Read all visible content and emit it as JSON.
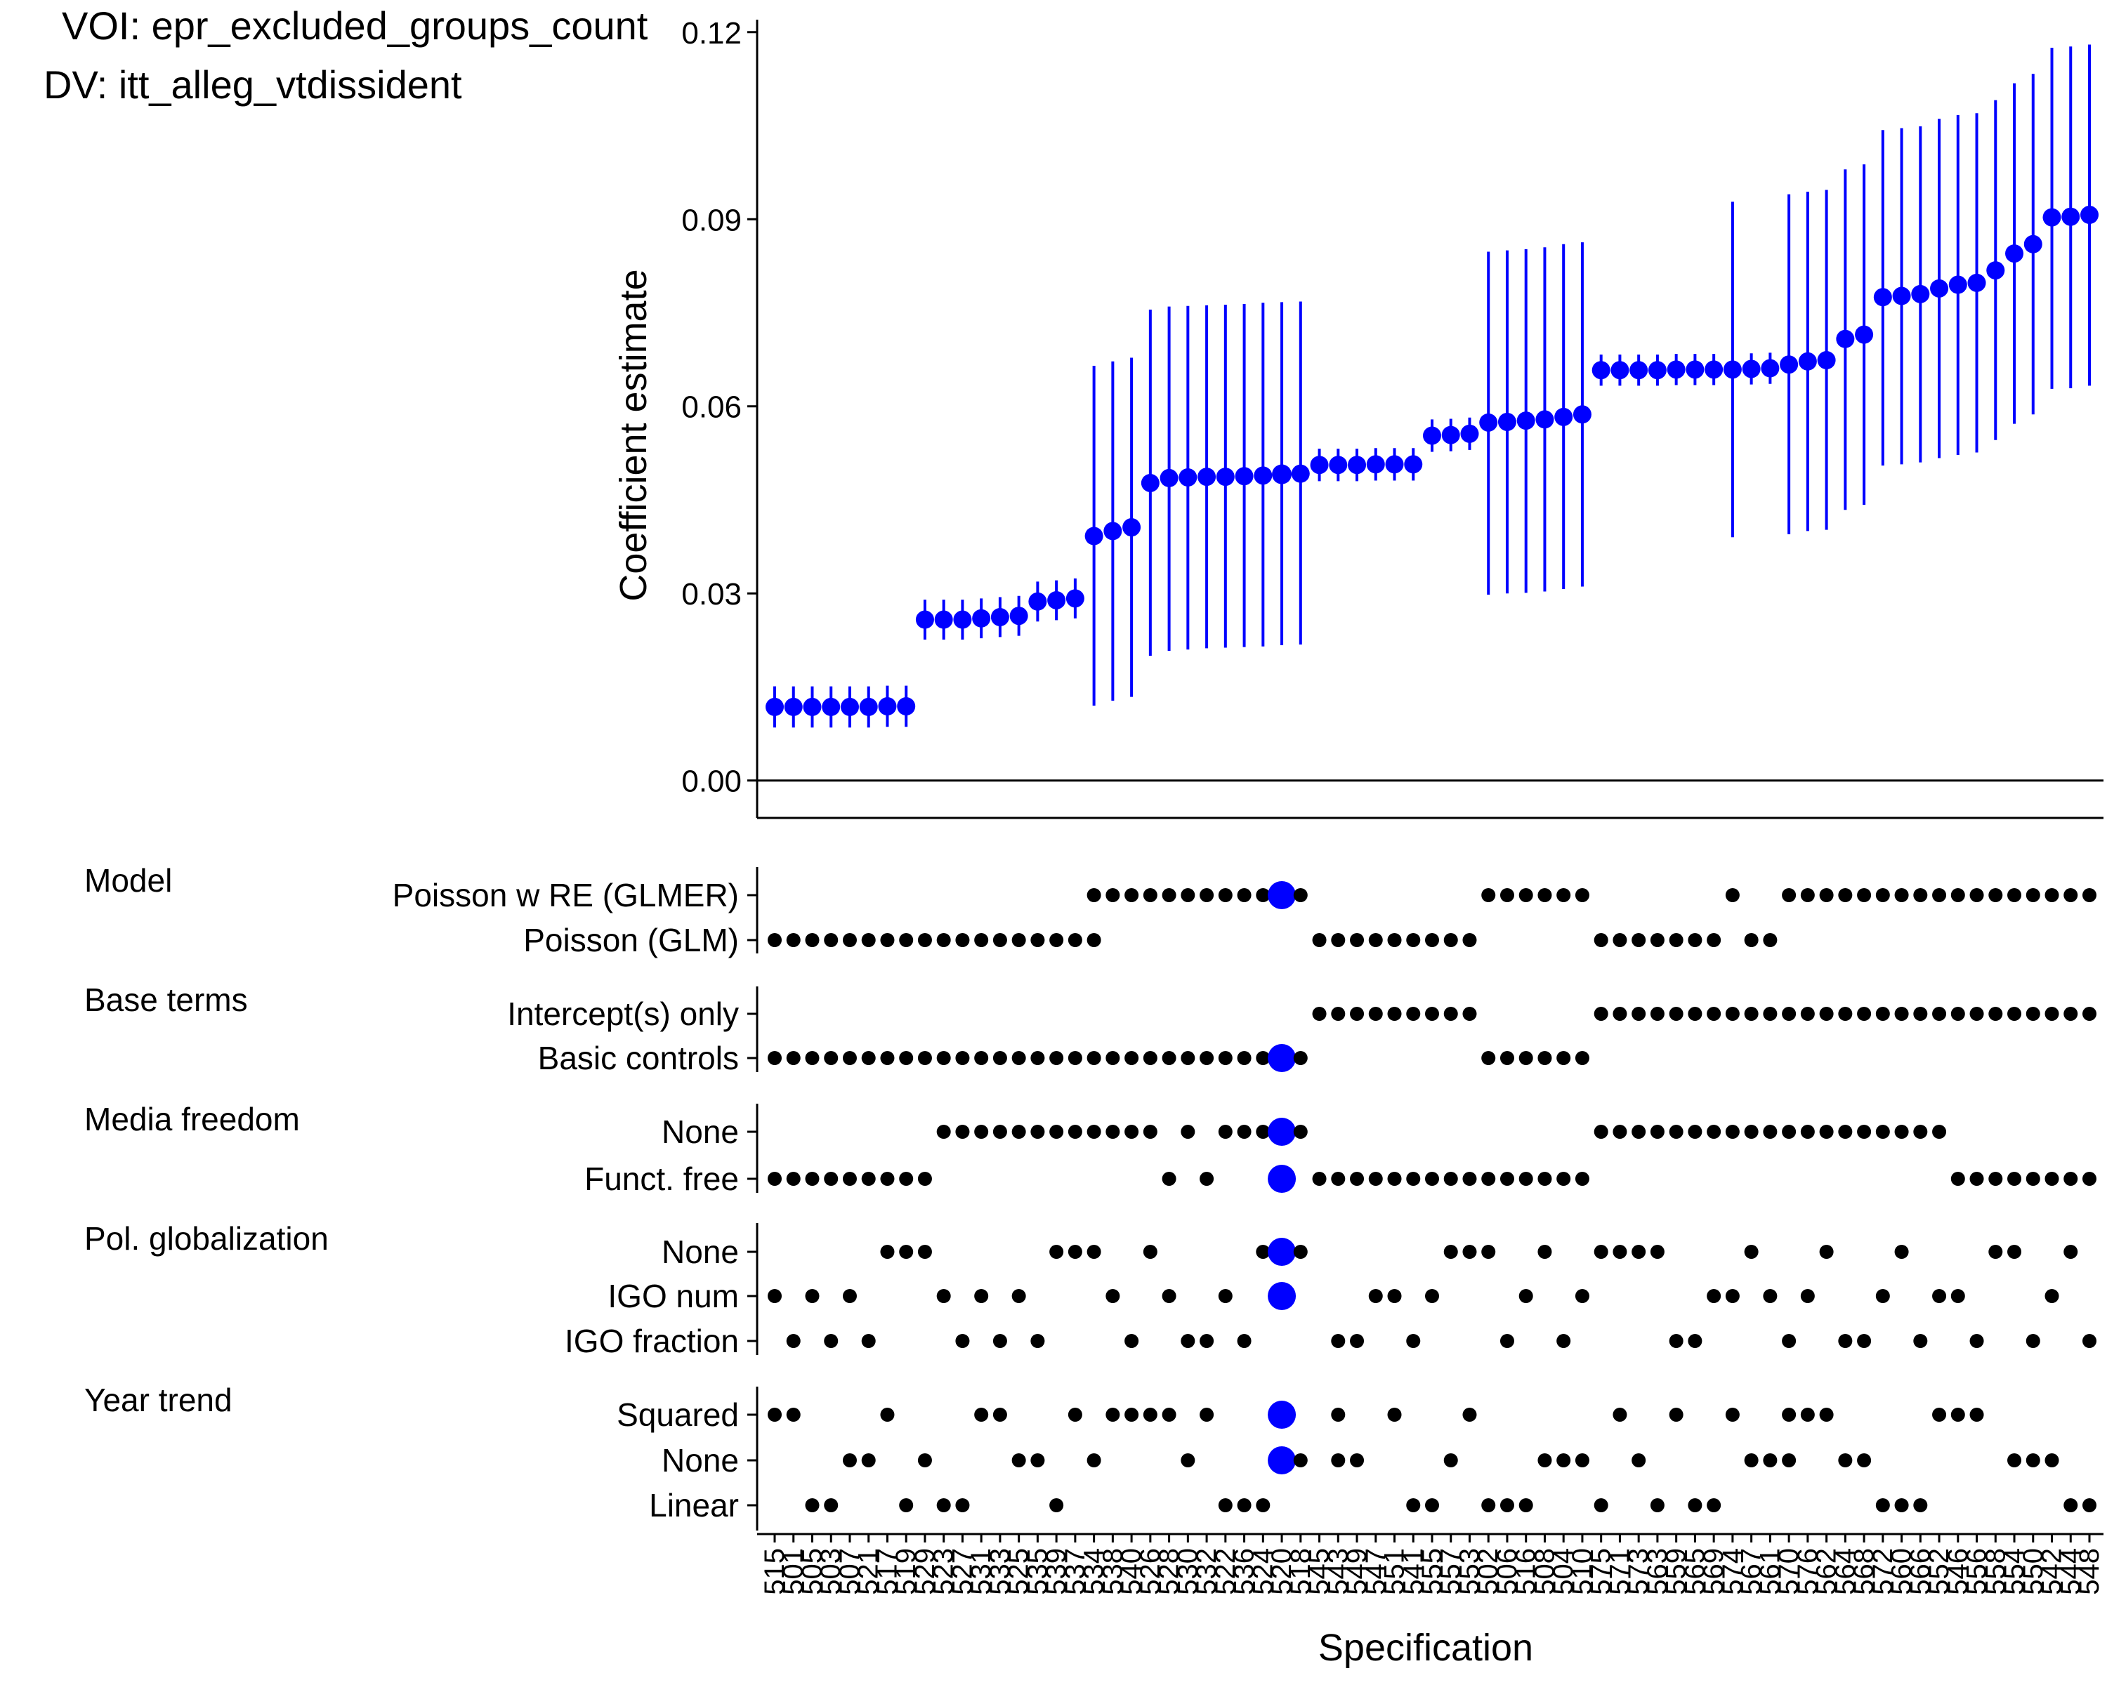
{
  "header": {
    "voi_label": "VOI: epr_excluded_groups_count",
    "dv_label": "DV: itt_alleg_vtdissident"
  },
  "colors": {
    "highlight": "#0000ff",
    "point": "#000000"
  },
  "chart_data": {
    "type": "scatter",
    "subtype": "specification-curve",
    "ylabel": "Coefficient estimate",
    "xlabel": "Specification",
    "ylim": [
      -0.006,
      0.122
    ],
    "yticks": [
      0.0,
      0.03,
      0.06,
      0.09,
      0.12
    ],
    "ytick_labels": [
      "0.00",
      "0.03",
      "0.06",
      "0.09",
      "0.12"
    ],
    "reference_line": 0.0,
    "highlighted_spec": 28,
    "specs": [
      {
        "id": "515",
        "est": 0.0118,
        "lo": 0.0085,
        "hi": 0.0151
      },
      {
        "id": "501",
        "est": 0.0118,
        "lo": 0.0085,
        "hi": 0.0151
      },
      {
        "id": "505",
        "est": 0.0118,
        "lo": 0.0085,
        "hi": 0.0151
      },
      {
        "id": "503",
        "est": 0.0118,
        "lo": 0.0085,
        "hi": 0.0151
      },
      {
        "id": "507",
        "est": 0.0118,
        "lo": 0.0085,
        "hi": 0.0151
      },
      {
        "id": "521",
        "est": 0.0118,
        "lo": 0.0085,
        "hi": 0.0151
      },
      {
        "id": "517",
        "est": 0.0119,
        "lo": 0.0086,
        "hi": 0.0152
      },
      {
        "id": "519",
        "est": 0.0119,
        "lo": 0.0086,
        "hi": 0.0152
      },
      {
        "id": "529",
        "est": 0.0258,
        "lo": 0.0226,
        "hi": 0.029
      },
      {
        "id": "523",
        "est": 0.0258,
        "lo": 0.0226,
        "hi": 0.029
      },
      {
        "id": "527",
        "est": 0.0258,
        "lo": 0.0226,
        "hi": 0.029
      },
      {
        "id": "531",
        "est": 0.026,
        "lo": 0.0228,
        "hi": 0.0292
      },
      {
        "id": "533",
        "est": 0.0262,
        "lo": 0.023,
        "hi": 0.0294
      },
      {
        "id": "525",
        "est": 0.0264,
        "lo": 0.0232,
        "hi": 0.0296
      },
      {
        "id": "535",
        "est": 0.0287,
        "lo": 0.0255,
        "hi": 0.0319
      },
      {
        "id": "539",
        "est": 0.0289,
        "lo": 0.0257,
        "hi": 0.0321
      },
      {
        "id": "537",
        "est": 0.0292,
        "lo": 0.026,
        "hi": 0.0324
      },
      {
        "id": "534",
        "est": 0.0392,
        "lo": 0.012,
        "hi": 0.0665
      },
      {
        "id": "538",
        "est": 0.04,
        "lo": 0.0128,
        "hi": 0.0672
      },
      {
        "id": "540",
        "est": 0.0406,
        "lo": 0.0134,
        "hi": 0.0678
      },
      {
        "id": "526",
        "est": 0.0477,
        "lo": 0.02,
        "hi": 0.0755
      },
      {
        "id": "528",
        "est": 0.0485,
        "lo": 0.0208,
        "hi": 0.076
      },
      {
        "id": "530",
        "est": 0.0486,
        "lo": 0.021,
        "hi": 0.0761
      },
      {
        "id": "532",
        "est": 0.0487,
        "lo": 0.0212,
        "hi": 0.0762
      },
      {
        "id": "522",
        "est": 0.0487,
        "lo": 0.0213,
        "hi": 0.0763
      },
      {
        "id": "536",
        "est": 0.0488,
        "lo": 0.0214,
        "hi": 0.0764
      },
      {
        "id": "524",
        "est": 0.0489,
        "lo": 0.0215,
        "hi": 0.0766
      },
      {
        "id": "520",
        "est": 0.0491,
        "lo": 0.0217,
        "hi": 0.0767
      },
      {
        "id": "518",
        "est": 0.0492,
        "lo": 0.0218,
        "hi": 0.0768
      },
      {
        "id": "545",
        "est": 0.0506,
        "lo": 0.048,
        "hi": 0.0532
      },
      {
        "id": "543",
        "est": 0.0506,
        "lo": 0.048,
        "hi": 0.0532
      },
      {
        "id": "549",
        "est": 0.0506,
        "lo": 0.048,
        "hi": 0.0532
      },
      {
        "id": "547",
        "est": 0.0507,
        "lo": 0.0481,
        "hi": 0.0533
      },
      {
        "id": "551",
        "est": 0.0507,
        "lo": 0.0481,
        "hi": 0.0533
      },
      {
        "id": "541",
        "est": 0.0507,
        "lo": 0.0481,
        "hi": 0.0533
      },
      {
        "id": "555",
        "est": 0.0553,
        "lo": 0.0527,
        "hi": 0.0579
      },
      {
        "id": "557",
        "est": 0.0554,
        "lo": 0.0528,
        "hi": 0.058
      },
      {
        "id": "553",
        "est": 0.0556,
        "lo": 0.053,
        "hi": 0.0582
      },
      {
        "id": "502",
        "est": 0.0574,
        "lo": 0.0298,
        "hi": 0.0848
      },
      {
        "id": "506",
        "est": 0.0575,
        "lo": 0.03,
        "hi": 0.085
      },
      {
        "id": "516",
        "est": 0.0577,
        "lo": 0.0301,
        "hi": 0.0852
      },
      {
        "id": "508",
        "est": 0.0579,
        "lo": 0.0303,
        "hi": 0.0855
      },
      {
        "id": "504",
        "est": 0.0583,
        "lo": 0.0307,
        "hi": 0.086
      },
      {
        "id": "510",
        "est": 0.0587,
        "lo": 0.0311,
        "hi": 0.0863
      },
      {
        "id": "575",
        "est": 0.0658,
        "lo": 0.0633,
        "hi": 0.0683
      },
      {
        "id": "571",
        "est": 0.0658,
        "lo": 0.0633,
        "hi": 0.0683
      },
      {
        "id": "573",
        "est": 0.0658,
        "lo": 0.0633,
        "hi": 0.0683
      },
      {
        "id": "563",
        "est": 0.0658,
        "lo": 0.0633,
        "hi": 0.0683
      },
      {
        "id": "559",
        "est": 0.0659,
        "lo": 0.0634,
        "hi": 0.0684
      },
      {
        "id": "565",
        "est": 0.0659,
        "lo": 0.0634,
        "hi": 0.0684
      },
      {
        "id": "569",
        "est": 0.0659,
        "lo": 0.0634,
        "hi": 0.0684
      },
      {
        "id": "574",
        "est": 0.0659,
        "lo": 0.039,
        "hi": 0.0928
      },
      {
        "id": "567",
        "est": 0.066,
        "lo": 0.0635,
        "hi": 0.0685
      },
      {
        "id": "561",
        "est": 0.0661,
        "lo": 0.0636,
        "hi": 0.0686
      },
      {
        "id": "570",
        "est": 0.0667,
        "lo": 0.0395,
        "hi": 0.094
      },
      {
        "id": "576",
        "est": 0.0672,
        "lo": 0.04,
        "hi": 0.0944
      },
      {
        "id": "562",
        "est": 0.0674,
        "lo": 0.0402,
        "hi": 0.0947
      },
      {
        "id": "564",
        "est": 0.0708,
        "lo": 0.0434,
        "hi": 0.098
      },
      {
        "id": "568",
        "est": 0.0715,
        "lo": 0.0442,
        "hi": 0.0988
      },
      {
        "id": "572",
        "est": 0.0775,
        "lo": 0.0505,
        "hi": 0.1043
      },
      {
        "id": "560",
        "est": 0.0777,
        "lo": 0.0507,
        "hi": 0.1046
      },
      {
        "id": "566",
        "est": 0.078,
        "lo": 0.051,
        "hi": 0.1049
      },
      {
        "id": "552",
        "est": 0.0789,
        "lo": 0.0517,
        "hi": 0.1061
      },
      {
        "id": "546",
        "est": 0.0795,
        "lo": 0.0522,
        "hi": 0.1067
      },
      {
        "id": "556",
        "est": 0.0798,
        "lo": 0.0526,
        "hi": 0.107
      },
      {
        "id": "558",
        "est": 0.0818,
        "lo": 0.0546,
        "hi": 0.1091
      },
      {
        "id": "554",
        "est": 0.0845,
        "lo": 0.0572,
        "hi": 0.1118
      },
      {
        "id": "550",
        "est": 0.086,
        "lo": 0.0587,
        "hi": 0.1133
      },
      {
        "id": "542",
        "est": 0.0903,
        "lo": 0.0628,
        "hi": 0.1175
      },
      {
        "id": "544",
        "est": 0.0904,
        "lo": 0.0629,
        "hi": 0.1177
      },
      {
        "id": "548",
        "est": 0.0907,
        "lo": 0.0633,
        "hi": 0.118
      }
    ],
    "panels": [
      {
        "title": "Model",
        "levels": [
          {
            "label": "Poisson w RE (GLMER)",
            "specs": [
              18,
              19,
              20,
              21,
              22,
              23,
              24,
              25,
              26,
              27,
              28,
              29,
              39,
              40,
              41,
              42,
              43,
              44,
              52,
              55,
              56,
              57,
              58,
              59,
              60,
              61,
              62,
              63,
              64,
              65,
              66,
              67,
              68,
              69,
              70,
              71
            ]
          },
          {
            "label": "Poisson (GLM)",
            "specs": [
              1,
              2,
              3,
              4,
              5,
              6,
              7,
              8,
              9,
              10,
              11,
              12,
              13,
              14,
              15,
              16,
              17,
              18,
              30,
              31,
              32,
              33,
              34,
              35,
              36,
              37,
              38,
              45,
              46,
              47,
              48,
              49,
              50,
              51,
              53,
              54
            ]
          }
        ]
      },
      {
        "title": "Base terms",
        "levels": [
          {
            "label": "Intercept(s) only",
            "specs": [
              30,
              31,
              32,
              33,
              34,
              35,
              36,
              37,
              38,
              45,
              46,
              47,
              48,
              49,
              50,
              51,
              52,
              53,
              54,
              55,
              56,
              57,
              58,
              59,
              60,
              61,
              62,
              63,
              64,
              65,
              66,
              67,
              68,
              69,
              70,
              71
            ]
          },
          {
            "label": "Basic controls",
            "specs": [
              1,
              2,
              3,
              4,
              5,
              6,
              7,
              8,
              9,
              10,
              11,
              12,
              13,
              14,
              15,
              16,
              17,
              18,
              19,
              20,
              21,
              22,
              23,
              24,
              25,
              26,
              27,
              28,
              29,
              39,
              40,
              41,
              42,
              43,
              44
            ]
          }
        ]
      },
      {
        "title": "Media freedom",
        "levels": [
          {
            "label": "None",
            "specs": [
              10,
              11,
              12,
              13,
              14,
              15,
              16,
              17,
              18,
              19,
              20,
              21,
              23,
              25,
              26,
              27,
              28,
              29,
              45,
              46,
              47,
              48,
              49,
              50,
              51,
              52,
              53,
              54,
              55,
              56,
              57,
              58,
              59,
              60,
              61,
              62,
              63
            ]
          },
          {
            "label": "Funct. free",
            "specs": [
              1,
              2,
              3,
              4,
              5,
              6,
              7,
              8,
              9,
              22,
              24,
              28,
              30,
              31,
              32,
              33,
              34,
              35,
              36,
              37,
              38,
              39,
              40,
              41,
              42,
              43,
              44,
              64,
              65,
              66,
              67,
              68,
              69,
              70,
              71
            ]
          }
        ]
      },
      {
        "title": "Pol. globalization",
        "levels": [
          {
            "label": "None",
            "specs": [
              7,
              8,
              9,
              16,
              17,
              18,
              21,
              27,
              28,
              29,
              37,
              38,
              39,
              42,
              45,
              46,
              47,
              48,
              53,
              57,
              61,
              66,
              67,
              70
            ]
          },
          {
            "label": "IGO num",
            "specs": [
              1,
              3,
              5,
              10,
              12,
              14,
              19,
              22,
              25,
              28,
              33,
              34,
              36,
              41,
              44,
              51,
              52,
              54,
              56,
              60,
              63,
              64,
              69,
              72
            ]
          },
          {
            "label": "IGO fraction",
            "specs": [
              2,
              4,
              6,
              11,
              13,
              15,
              20,
              23,
              24,
              26,
              31,
              32,
              35,
              40,
              43,
              49,
              50,
              55,
              58,
              59,
              62,
              65,
              68,
              71
            ]
          }
        ]
      },
      {
        "title": "Year trend",
        "levels": [
          {
            "label": "Squared",
            "specs": [
              1,
              2,
              7,
              12,
              13,
              17,
              19,
              20,
              21,
              22,
              24,
              28,
              31,
              34,
              38,
              46,
              49,
              52,
              55,
              56,
              57,
              63,
              64,
              65
            ]
          },
          {
            "label": "None",
            "specs": [
              5,
              6,
              9,
              14,
              15,
              18,
              23,
              28,
              29,
              31,
              32,
              37,
              42,
              43,
              44,
              47,
              53,
              54,
              55,
              58,
              59,
              67,
              68,
              69
            ]
          },
          {
            "label": "Linear",
            "specs": [
              3,
              4,
              8,
              10,
              11,
              16,
              25,
              26,
              27,
              35,
              36,
              39,
              40,
              41,
              45,
              48,
              50,
              51,
              60,
              61,
              62,
              70,
              71,
              72
            ]
          }
        ]
      }
    ]
  }
}
